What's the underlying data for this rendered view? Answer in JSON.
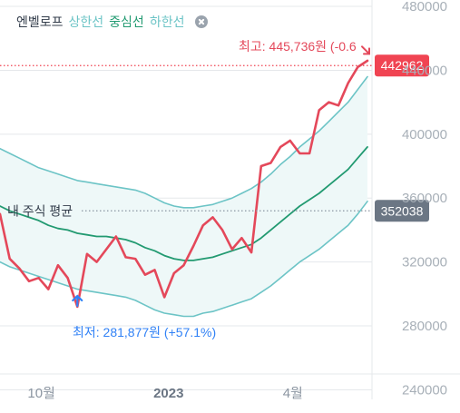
{
  "legend": {
    "title": "엔벨로프",
    "upper": "상한선",
    "center": "중심선",
    "lower": "하한선"
  },
  "chart_data": {
    "type": "line",
    "x": [
      "2022-09-01",
      "2022-09-08",
      "2022-09-15",
      "2022-09-22",
      "2022-09-29",
      "2022-10-06",
      "2022-10-13",
      "2022-10-20",
      "2022-10-27",
      "2022-11-03",
      "2022-11-10",
      "2022-11-17",
      "2022-11-24",
      "2022-12-01",
      "2022-12-08",
      "2022-12-15",
      "2022-12-22",
      "2022-12-29",
      "2023-01-05",
      "2023-01-12",
      "2023-01-19",
      "2023-01-26",
      "2023-02-02",
      "2023-02-09",
      "2023-02-16",
      "2023-02-23",
      "2023-03-02",
      "2023-03-09",
      "2023-03-16",
      "2023-03-23",
      "2023-03-30",
      "2023-04-06",
      "2023-04-13",
      "2023-04-20",
      "2023-04-27",
      "2023-05-04",
      "2023-05-11",
      "2023-05-18",
      "2023-05-25"
    ],
    "series": [
      {
        "name": "",
        "role": "price",
        "color": "#e4485a",
        "values": [
          350000,
          322000,
          316000,
          308000,
          310000,
          303000,
          318000,
          310000,
          292000,
          325000,
          320000,
          328000,
          336000,
          323000,
          322000,
          312000,
          315000,
          298000,
          313000,
          318000,
          330000,
          343000,
          348000,
          340000,
          328000,
          335000,
          326000,
          380000,
          382000,
          392000,
          396000,
          388000,
          388000,
          415000,
          420000,
          418000,
          432000,
          442000,
          446000
        ]
      },
      {
        "name": "상한선",
        "role": "upper",
        "color": "#6cc4c6",
        "values": [
          391000,
          388000,
          385000,
          382000,
          379000,
          377000,
          375000,
          373000,
          371000,
          370000,
          369000,
          368000,
          367000,
          366000,
          365000,
          363000,
          360000,
          357000,
          355000,
          354000,
          354000,
          355000,
          356000,
          358000,
          360000,
          363000,
          366000,
          370000,
          375000,
          381000,
          386000,
          392000,
          397000,
          402000,
          408000,
          414000,
          420000,
          428000,
          436000
        ]
      },
      {
        "name": "중심선",
        "role": "center",
        "color": "#229a71",
        "values": [
          355000,
          352000,
          350000,
          348000,
          346000,
          343000,
          341000,
          340000,
          338000,
          337000,
          336000,
          336000,
          335000,
          334000,
          332000,
          329000,
          327000,
          324000,
          322000,
          321000,
          321000,
          322000,
          323000,
          325000,
          327000,
          329000,
          331000,
          335000,
          340000,
          345000,
          350000,
          355000,
          359000,
          363000,
          368000,
          373000,
          378000,
          385000,
          392000
        ]
      },
      {
        "name": "하한선",
        "role": "lower",
        "color": "#6cc4c6",
        "values": [
          320000,
          317000,
          315000,
          313000,
          311000,
          309000,
          307000,
          305000,
          303000,
          302000,
          301000,
          300000,
          299000,
          298000,
          296000,
          293000,
          290000,
          288000,
          287000,
          286000,
          286000,
          288000,
          289000,
          291000,
          293000,
          295000,
          297000,
          301000,
          305000,
          310000,
          315000,
          320000,
          324000,
          328000,
          333000,
          338000,
          343000,
          350000,
          358000
        ]
      }
    ],
    "yaxis": {
      "min": 234000,
      "max": 484000,
      "ticks": [
        240000,
        280000,
        320000,
        360000,
        400000,
        440000,
        480000
      ],
      "tick_labels": [
        "240000",
        "280000",
        "320000",
        "360000",
        "400000",
        "440000",
        "480000"
      ]
    },
    "xaxis": {
      "tick_labels": [
        {
          "x": "2022-10-01",
          "label": "10월",
          "bold": false
        },
        {
          "x": "2023-01-01",
          "label": "2023",
          "bold": true
        },
        {
          "x": "2023-04-01",
          "label": "4월",
          "bold": false
        }
      ]
    },
    "current_price": {
      "value": 442962,
      "label": "442962",
      "color": "#f04452"
    },
    "my_average": {
      "value": 352038,
      "label": "352038",
      "text": "내 주식 평균",
      "color": "#6b7684"
    },
    "max_annotation": {
      "x": "2023-05-25",
      "value": 445736,
      "text": "최고: 445,736원 (-0.6"
    },
    "min_annotation": {
      "x": "2022-10-27",
      "value": 281877,
      "text": "최저: 281,877원 (+57.1%)"
    },
    "colors": {
      "band_fill": "#eef8f8",
      "grid": "#e5e8eb"
    }
  }
}
